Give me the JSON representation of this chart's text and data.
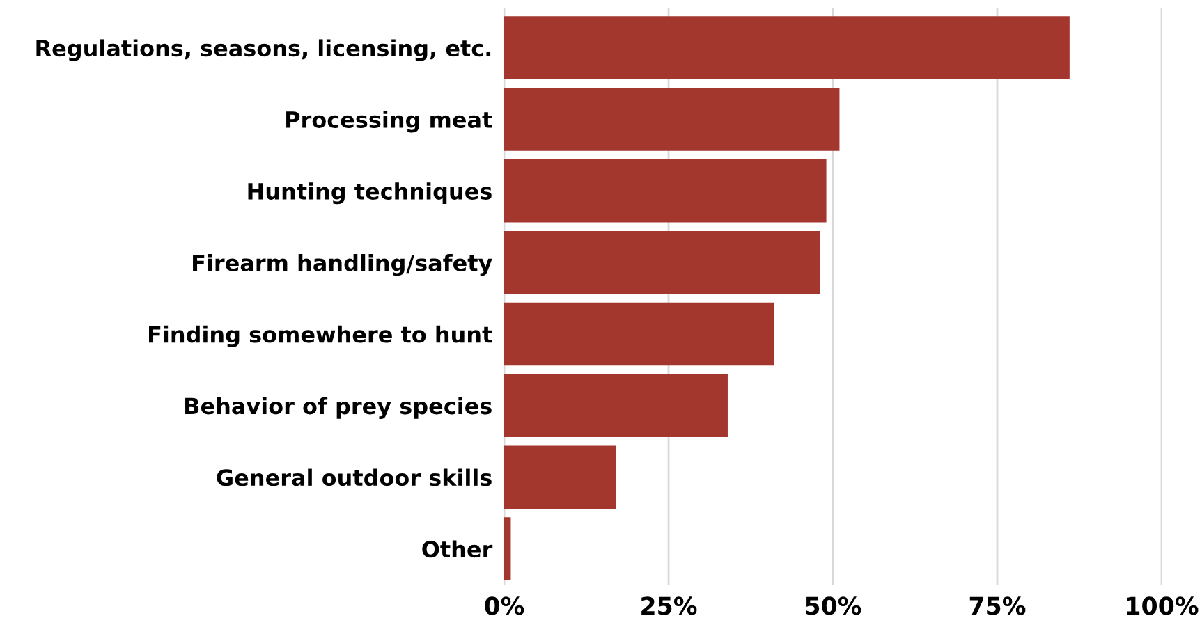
{
  "chart_data": {
    "type": "bar",
    "orientation": "horizontal",
    "categories": [
      "Regulations, seasons, licensing, etc.",
      "Processing meat",
      "Hunting techniques",
      "Firearm handling/safety",
      "Finding somewhere to hunt",
      "Behavior of prey species",
      "General outdoor skills",
      "Other"
    ],
    "values": [
      86,
      51,
      49,
      48,
      41,
      34,
      17,
      1
    ],
    "color": "#a3372e",
    "xlim": [
      0,
      100
    ],
    "xticks": [
      {
        "value": 0,
        "label": "0%"
      },
      {
        "value": 25,
        "label": "25%"
      },
      {
        "value": 50,
        "label": "50%"
      },
      {
        "value": 75,
        "label": "75%"
      },
      {
        "value": 100,
        "label": "100%"
      }
    ],
    "grid": "x"
  }
}
